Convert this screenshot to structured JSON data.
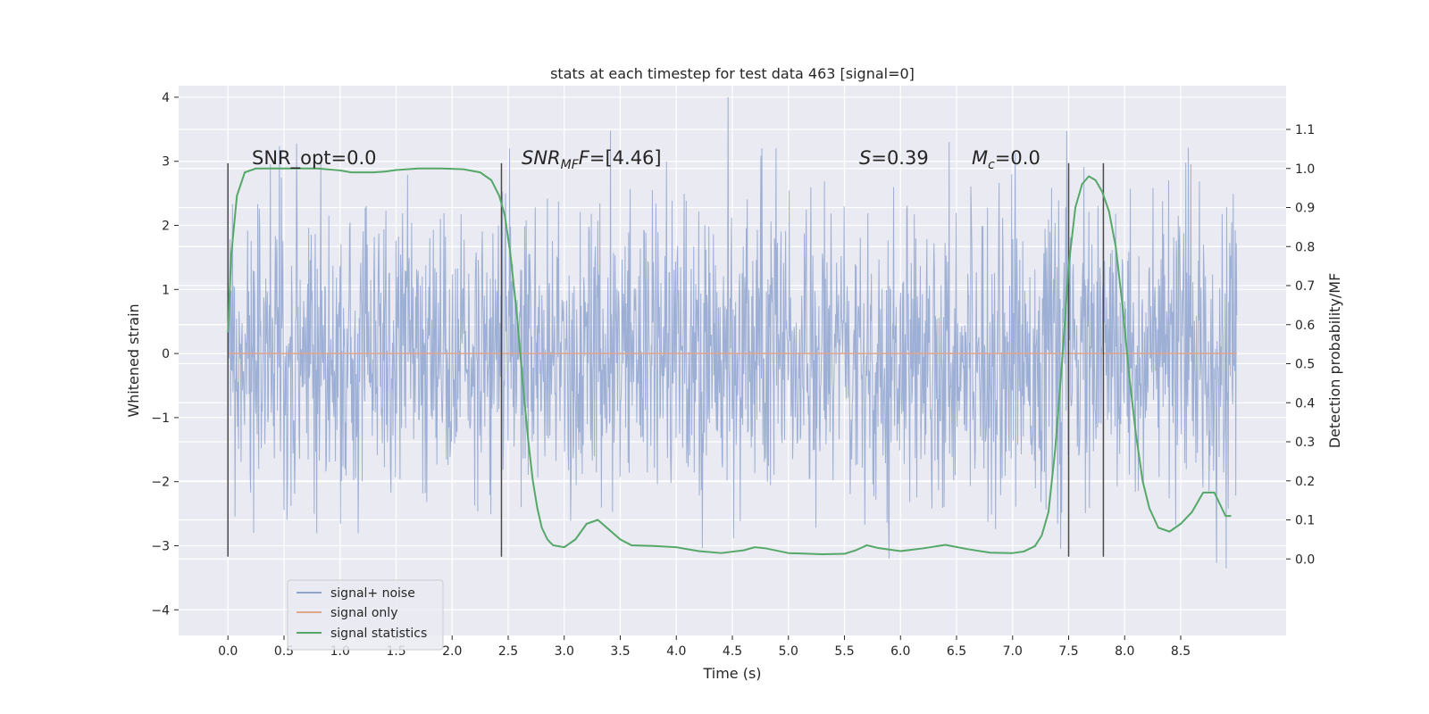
{
  "chart_data": {
    "type": "line",
    "title": "stats at each timestep for test data 463 [signal=0]",
    "xlabel": "Time (s)",
    "ylabel": "Whitened strain",
    "ylabel_right": "Detection probability/MF",
    "xlim": [
      -0.44,
      9.44
    ],
    "ylim": [
      -4.4,
      4.18
    ],
    "ylim_right": [
      -0.196,
      1.212
    ],
    "x_ticks": [
      "0.0",
      "0.5",
      "1.0",
      "1.5",
      "2.0",
      "2.5",
      "3.0",
      "3.5",
      "4.0",
      "4.5",
      "5.0",
      "5.5",
      "6.0",
      "6.5",
      "7.0",
      "7.5",
      "8.0",
      "8.5"
    ],
    "y_ticks": [
      "−4",
      "−3",
      "−2",
      "−1",
      "0",
      "1",
      "2",
      "3",
      "4"
    ],
    "y_ticks_right": [
      "0.0",
      "0.1",
      "0.2",
      "0.3",
      "0.4",
      "0.5",
      "0.6",
      "0.7",
      "0.8",
      "0.9",
      "1.0",
      "1.1"
    ],
    "grid": true,
    "legend": {
      "position": "lower-left",
      "entries": [
        {
          "label": "signal+ noise",
          "color": "#8fa4cf"
        },
        {
          "label": "signal only",
          "color": "#e0a58c"
        },
        {
          "label": "signal statistics",
          "color": "#55a868"
        }
      ]
    },
    "annotations": {
      "snr_opt": {
        "prefix": "SNR_opt=",
        "value": "0.0"
      },
      "snr_mf": {
        "symbol": "SNR",
        "sub": "MF",
        "rest": "=[4.46]"
      },
      "s_stat": {
        "symbol": "S",
        "rest": "=0.39"
      },
      "mc": {
        "symbol": "M",
        "sub": "c",
        "rest": "=0.0"
      }
    },
    "vertical_lines_x": [
      0.0,
      2.44,
      7.5,
      7.81
    ],
    "vertical_lines_range": [
      -3.17,
      2.97
    ],
    "series": [
      {
        "name": "signal+ noise",
        "color": "#8fa4cf",
        "x_range": [
          0.0,
          9.0
        ],
        "sample_count": 2000,
        "envelope_abs_max": 4.0
      },
      {
        "name": "signal only",
        "color": "#e0a58c",
        "x_range": [
          0.0,
          9.0
        ],
        "value": 0.0
      },
      {
        "name": "signal statistics",
        "color": "#55a868",
        "axis": "right",
        "x": [
          0.0,
          0.03,
          0.08,
          0.15,
          0.25,
          0.4,
          0.6,
          0.8,
          1.0,
          1.1,
          1.2,
          1.3,
          1.4,
          1.5,
          1.7,
          1.9,
          2.1,
          2.25,
          2.35,
          2.42,
          2.47,
          2.52,
          2.58,
          2.63,
          2.68,
          2.72,
          2.76,
          2.8,
          2.85,
          2.9,
          3.0,
          3.1,
          3.2,
          3.3,
          3.4,
          3.5,
          3.6,
          3.8,
          4.0,
          4.2,
          4.4,
          4.6,
          4.7,
          4.8,
          5.0,
          5.3,
          5.5,
          5.6,
          5.7,
          5.8,
          6.0,
          6.2,
          6.4,
          6.6,
          6.8,
          7.0,
          7.1,
          7.2,
          7.26,
          7.32,
          7.38,
          7.44,
          7.5,
          7.56,
          7.62,
          7.68,
          7.74,
          7.8,
          7.86,
          7.92,
          7.98,
          8.04,
          8.1,
          8.16,
          8.22,
          8.3,
          8.4,
          8.5,
          8.6,
          8.7,
          8.8,
          8.9,
          8.95
        ],
        "values": [
          0.58,
          0.78,
          0.93,
          0.99,
          1.0,
          1.0,
          1.0,
          1.0,
          0.995,
          0.99,
          0.99,
          0.99,
          0.992,
          0.996,
          1.0,
          1.0,
          0.998,
          0.99,
          0.97,
          0.93,
          0.88,
          0.78,
          0.62,
          0.45,
          0.3,
          0.2,
          0.13,
          0.08,
          0.05,
          0.035,
          0.03,
          0.05,
          0.09,
          0.1,
          0.075,
          0.05,
          0.035,
          0.033,
          0.03,
          0.02,
          0.015,
          0.022,
          0.03,
          0.027,
          0.015,
          0.012,
          0.013,
          0.022,
          0.035,
          0.028,
          0.02,
          0.027,
          0.036,
          0.025,
          0.016,
          0.015,
          0.019,
          0.033,
          0.06,
          0.12,
          0.28,
          0.5,
          0.75,
          0.9,
          0.96,
          0.98,
          0.97,
          0.94,
          0.89,
          0.8,
          0.65,
          0.47,
          0.32,
          0.2,
          0.13,
          0.08,
          0.07,
          0.09,
          0.12,
          0.17,
          0.17,
          0.11,
          0.11
        ]
      }
    ]
  }
}
